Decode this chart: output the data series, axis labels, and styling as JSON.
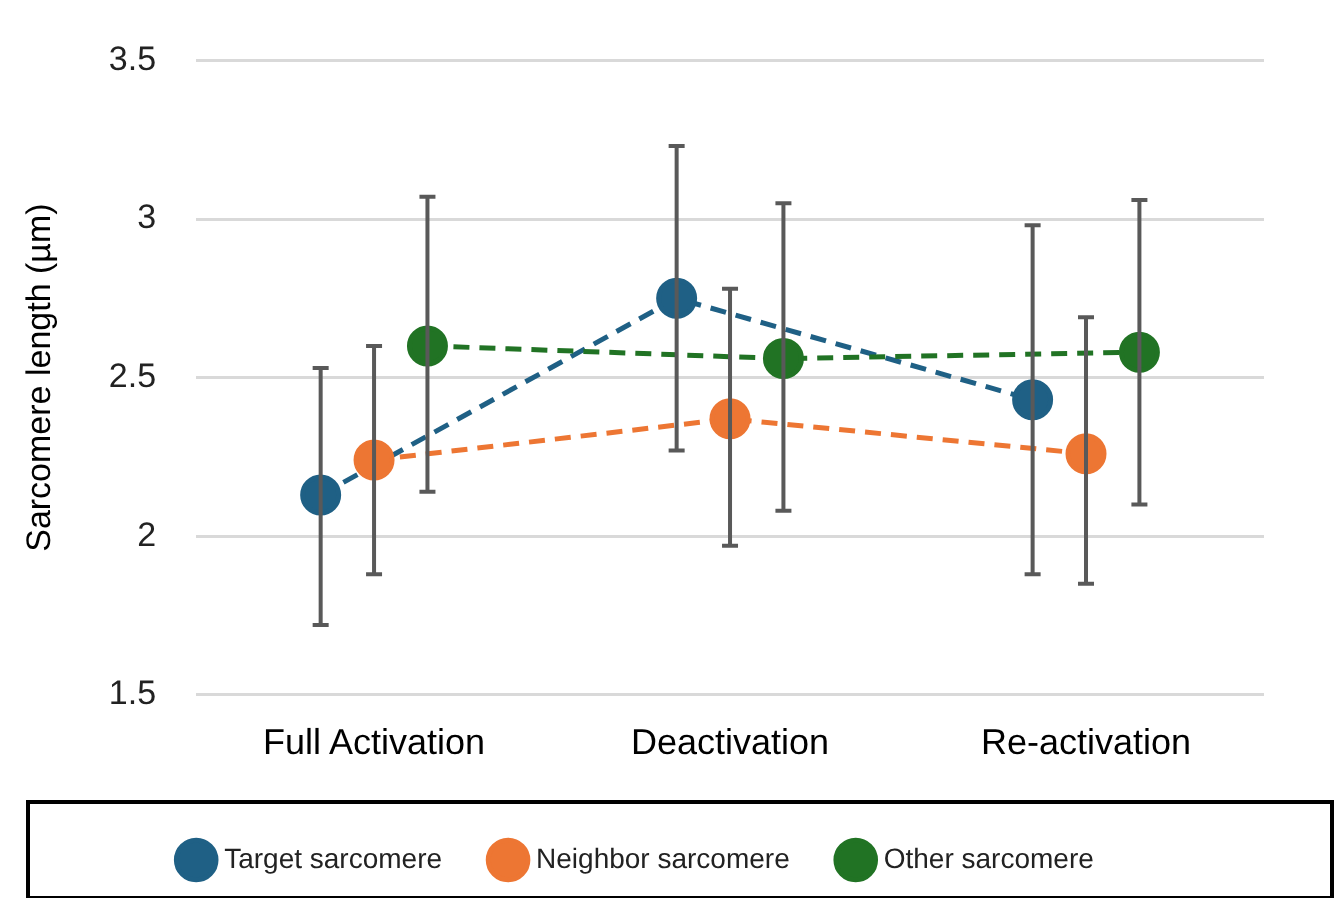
{
  "chart_data": {
    "type": "line",
    "ylabel": "Sarcomere length (µm)",
    "categories": [
      "Full Activation",
      "Deactivation",
      "Re-activation"
    ],
    "series": [
      {
        "name": "Target sarcomere",
        "color": "#1f6085",
        "values": [
          2.13,
          2.75,
          2.43
        ],
        "errors": [
          [
            1.72,
            2.53
          ],
          [
            2.27,
            3.23
          ],
          [
            1.88,
            2.98
          ]
        ]
      },
      {
        "name": "Neighbor sarcomere",
        "color": "#ed7633",
        "values": [
          2.24,
          2.37,
          2.26
        ],
        "errors": [
          [
            1.88,
            2.6
          ],
          [
            1.97,
            2.78
          ],
          [
            1.85,
            2.69
          ]
        ]
      },
      {
        "name": "Other sarcomere",
        "color": "#217324",
        "values": [
          2.6,
          2.56,
          2.58
        ],
        "errors": [
          [
            2.14,
            3.07
          ],
          [
            2.08,
            3.05
          ],
          [
            2.1,
            3.06
          ]
        ]
      }
    ],
    "ylim": [
      1.5,
      3.5
    ],
    "yticks": [
      1.5,
      2,
      2.5,
      3,
      3.5
    ],
    "grid": "y",
    "legend": "bottom",
    "marker": "circle",
    "line_style": "dashed"
  }
}
